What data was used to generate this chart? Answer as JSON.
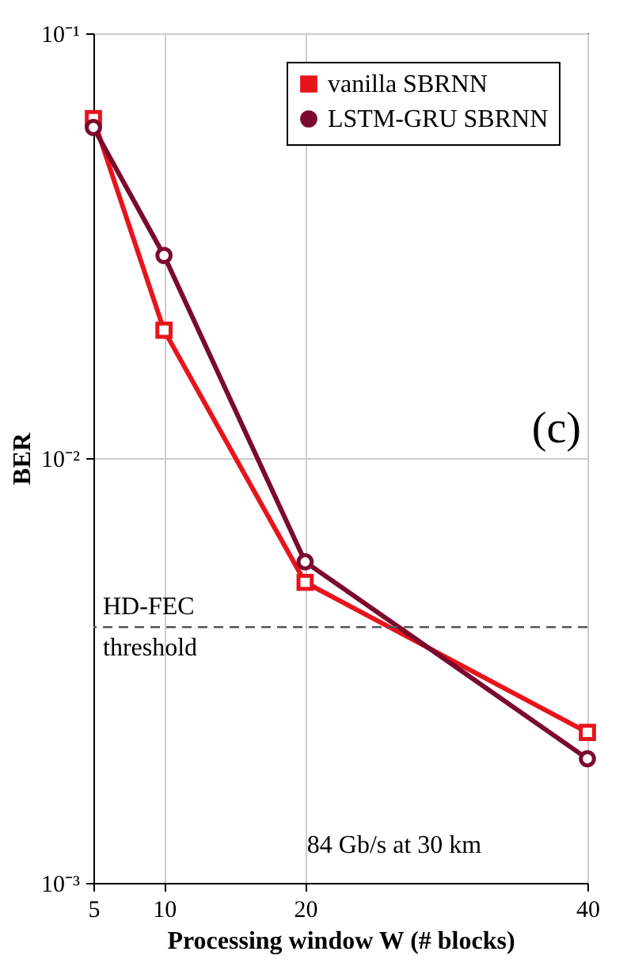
{
  "chart_data": {
    "type": "line",
    "xlabel": "Processing window W (# blocks)",
    "ylabel": "BER",
    "x": [
      5,
      10,
      20,
      40
    ],
    "series": [
      {
        "name": "vanilla SBRNN",
        "color": "#e8141c",
        "marker": "square",
        "values": [
          0.063,
          0.02,
          0.0051,
          0.00226
        ]
      },
      {
        "name": "LSTM-GRU SBRNN",
        "color": "#7b0a2c",
        "marker": "circle",
        "values": [
          0.06,
          0.03,
          0.0057,
          0.00196
        ]
      }
    ],
    "log": "y",
    "xlim": [
      5,
      40
    ],
    "xticks": [
      5,
      10,
      20,
      40
    ],
    "ylim": [
      0.001,
      0.1
    ],
    "yticks": [
      {
        "value": 0.001,
        "label": "10⁻³"
      },
      {
        "value": 0.01,
        "label": "10⁻²"
      },
      {
        "value": 0.1,
        "label": "10⁻¹"
      }
    ],
    "grid": true,
    "legend": "top right",
    "line_style": "solid",
    "ref_lines": [
      {
        "axis": "y",
        "value": 0.004,
        "label": "HD-FEC threshold",
        "line_style": "dashed",
        "color": "#555555"
      }
    ],
    "annotations": [
      "(c)",
      "84 Gb/s at 30 km"
    ]
  }
}
